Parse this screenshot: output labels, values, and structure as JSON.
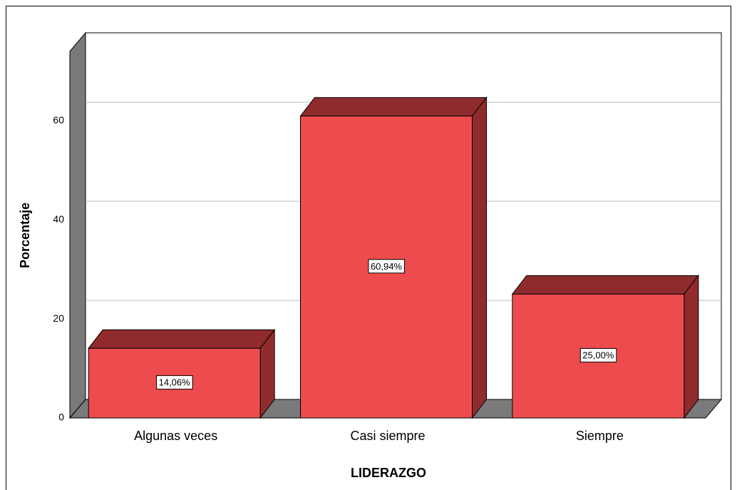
{
  "chart_data": {
    "type": "bar3d",
    "categories": [
      "Algunas veces",
      "Casi siempre",
      "Siempre"
    ],
    "values": [
      14.06,
      60.94,
      25.0
    ],
    "value_labels": [
      "14,06%",
      "60,94%",
      "25,00%"
    ],
    "color": "#ed4b4d",
    "shade_color": "#8f2b2c",
    "wall_color": "#7a7a7a",
    "ylim": [
      0,
      74
    ],
    "yticks": [
      0,
      20,
      40,
      60
    ],
    "grid": true,
    "y_label": "Porcentaje",
    "x_label": "LIDERAZGO"
  }
}
